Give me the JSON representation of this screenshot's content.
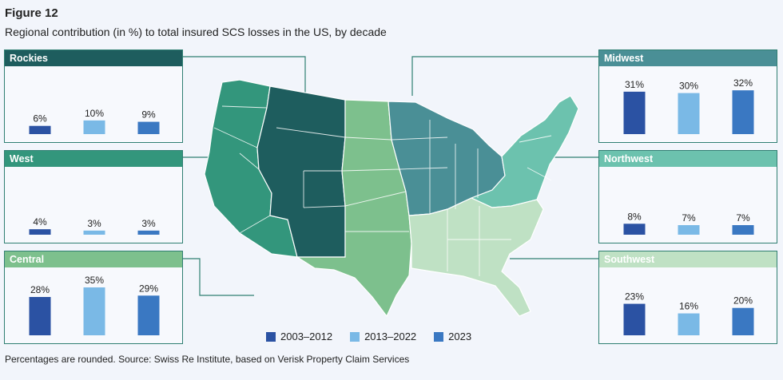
{
  "figure": {
    "label": "Figure 12",
    "subtitle": "Regional contribution (in %) to total insured SCS losses in the US, by decade",
    "footnote": "Percentages are rounded. Source: Swiss Re Institute, based on Verisk Property Claim Services"
  },
  "colors": {
    "series_2003_2012": "#2b52a3",
    "series_2013_2022": "#7ab9e6",
    "series_2023": "#3a78c2",
    "rockies": "#1e5d5e",
    "west": "#33967c",
    "central": "#7dc08d",
    "midwest": "#4a8f96",
    "northwest": "#6cc2ae",
    "southwest": "#bfe1c4"
  },
  "legend": [
    {
      "label": "2003–2012",
      "color": "#2b52a3"
    },
    {
      "label": "2013–2022",
      "color": "#7ab9e6"
    },
    {
      "label": "2023",
      "color": "#3a78c2"
    }
  ],
  "chart_data": {
    "type": "bar",
    "title": "Regional contribution (in %) to total insured SCS losses in the US, by decade",
    "series_names": [
      "2003–2012",
      "2013–2022",
      "2023"
    ],
    "ylim": [
      0,
      35
    ],
    "regions": [
      {
        "key": "rockies",
        "name": "Rockies",
        "values": [
          6,
          10,
          9
        ],
        "labels": [
          "6%",
          "10%",
          "9%"
        ]
      },
      {
        "key": "west",
        "name": "West",
        "values": [
          4,
          3,
          3
        ],
        "labels": [
          "4%",
          "3%",
          "3%"
        ]
      },
      {
        "key": "central",
        "name": "Central",
        "values": [
          28,
          35,
          29
        ],
        "labels": [
          "28%",
          "35%",
          "29%"
        ]
      },
      {
        "key": "midwest",
        "name": "Midwest",
        "values": [
          31,
          30,
          32
        ],
        "labels": [
          "31%",
          "30%",
          "32%"
        ]
      },
      {
        "key": "northwest",
        "name": "Northwest",
        "values": [
          8,
          7,
          7
        ],
        "labels": [
          "8%",
          "7%",
          "7%"
        ]
      },
      {
        "key": "southwest",
        "name": "Southwest",
        "values": [
          23,
          16,
          20
        ],
        "labels": [
          "23%",
          "16%",
          "20%"
        ]
      }
    ]
  }
}
